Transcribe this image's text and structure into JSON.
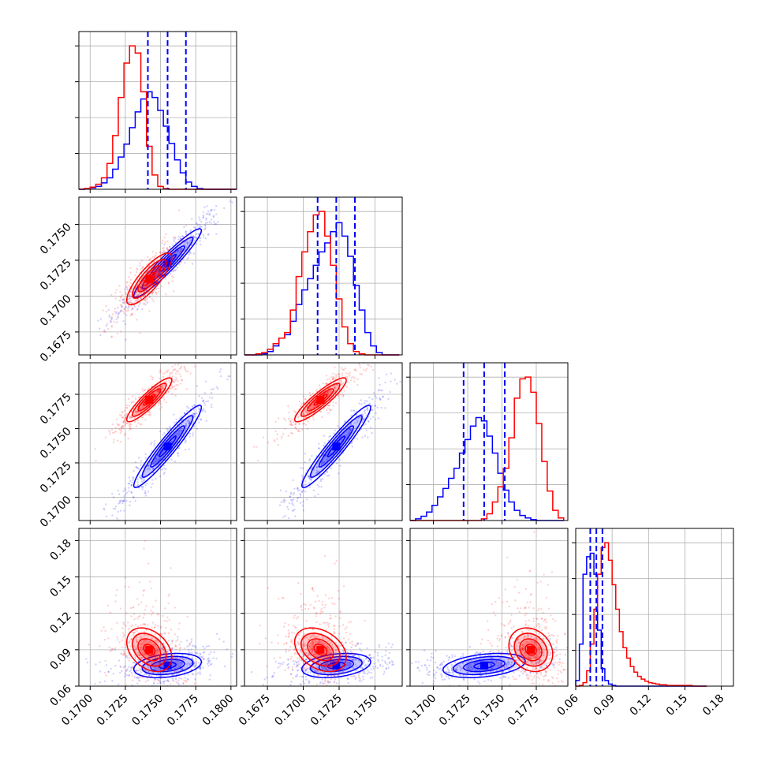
{
  "chart_data": {
    "type": "corner",
    "grid": true,
    "colors": {
      "blue": "#0000ff",
      "red": "#ff0000"
    },
    "parameters": [
      {
        "id": "p0",
        "range": [
          0.1692,
          0.1804
        ],
        "ticks": [
          "0.1700",
          "0.1725",
          "0.1750",
          "0.1775",
          "0.1800"
        ],
        "tick_values": [
          0.17,
          0.1725,
          0.175,
          0.1775,
          0.18
        ]
      },
      {
        "id": "p1",
        "range": [
          0.1659,
          0.1769
        ],
        "ticks": [
          "0.1675",
          "0.1700",
          "0.1725",
          "0.1750"
        ],
        "tick_values": [
          0.1675,
          0.17,
          0.1725,
          0.175
        ]
      },
      {
        "id": "p2",
        "range": [
          0.1683,
          0.1798
        ],
        "ticks": [
          "0.1700",
          "0.1725",
          "0.1750",
          "0.1775"
        ],
        "tick_values": [
          0.17,
          0.1725,
          0.175,
          0.1775
        ]
      },
      {
        "id": "p3",
        "range": [
          0.06,
          0.19
        ],
        "ticks": [
          "0.06",
          "0.09",
          "0.12",
          "0.15",
          "0.18"
        ],
        "tick_values": [
          0.06,
          0.09,
          0.12,
          0.15,
          0.18
        ]
      }
    ],
    "series": [
      {
        "color": "blue",
        "mean": [
          0.1755,
          0.1723,
          0.1737,
          0.077
        ],
        "std": [
          0.0012,
          0.0012,
          0.0015,
          0.005
        ],
        "quantiles_drawn": true,
        "quantiles": [
          [
            0.1741,
            0.1755,
            0.1768
          ],
          [
            0.171,
            0.1723,
            0.1736
          ],
          [
            0.1722,
            0.1737,
            0.1752
          ],
          [
            0.072,
            0.077,
            0.082
          ]
        ]
      },
      {
        "color": "red",
        "mean": [
          0.1742,
          0.1712,
          0.1771,
          0.09
        ],
        "std": [
          0.0008,
          0.0009,
          0.0008,
          0.009
        ],
        "quantiles_drawn": false
      }
    ],
    "histograms": [
      {
        "param": "p0",
        "bins": [
          0.1692,
          0.1696,
          0.17,
          0.1704,
          0.1708,
          0.1712,
          0.1716,
          0.172,
          0.1724,
          0.1728,
          0.1732,
          0.1736,
          0.174,
          0.1744,
          0.1748,
          0.1752,
          0.1756,
          0.176,
          0.1764,
          0.1768,
          0.1772,
          0.1776,
          0.178,
          0.1784,
          0.1788,
          0.1792,
          0.1796,
          0.18
        ],
        "blue": [
          0,
          1,
          2,
          4,
          9,
          16,
          28,
          45,
          63,
          86,
          108,
          126,
          136,
          128,
          110,
          88,
          64,
          41,
          23,
          10,
          4,
          1,
          0,
          0,
          0,
          0,
          0,
          0
        ],
        "red": [
          0,
          1,
          3,
          7,
          16,
          36,
          75,
          128,
          176,
          200,
          190,
          136,
          60,
          20,
          4,
          1,
          0,
          0,
          0,
          0,
          0,
          0,
          0,
          0,
          0,
          0,
          0,
          0
        ]
      },
      {
        "param": "p1",
        "bins": [
          0.1659,
          0.1663,
          0.1667,
          0.1671,
          0.1675,
          0.1679,
          0.1683,
          0.1687,
          0.1691,
          0.1695,
          0.1699,
          0.1703,
          0.1707,
          0.1711,
          0.1715,
          0.1719,
          0.1723,
          0.1727,
          0.1731,
          0.1735,
          0.1739,
          0.1743,
          0.1747,
          0.1751,
          0.1755,
          0.1759,
          0.1763,
          0.1767
        ],
        "blue": [
          0,
          0,
          0,
          1,
          3,
          8,
          15,
          18,
          30,
          45,
          58,
          68,
          80,
          92,
          100,
          110,
          118,
          106,
          88,
          62,
          40,
          20,
          8,
          2,
          0,
          0,
          0
        ],
        "red": [
          0,
          0,
          1,
          2,
          5,
          10,
          15,
          20,
          40,
          70,
          92,
          110,
          125,
          128,
          106,
          80,
          50,
          25,
          10,
          3,
          1,
          0,
          0,
          0,
          0,
          0,
          0
        ]
      },
      {
        "param": "p2",
        "bins": [
          0.1683,
          0.1687,
          0.1691,
          0.1695,
          0.1699,
          0.1703,
          0.1707,
          0.1711,
          0.1715,
          0.1719,
          0.1723,
          0.1727,
          0.1731,
          0.1735,
          0.1739,
          0.1743,
          0.1747,
          0.1751,
          0.1755,
          0.1759,
          0.1763,
          0.1767,
          0.1771,
          0.1775,
          0.1779,
          0.1783,
          0.1787,
          0.1791,
          0.1795
        ],
        "blue": [
          0,
          2,
          5,
          10,
          18,
          28,
          38,
          50,
          62,
          80,
          96,
          112,
          122,
          118,
          100,
          80,
          56,
          36,
          22,
          12,
          6,
          3,
          1,
          0,
          0,
          0,
          0,
          0
        ],
        "red": [
          0,
          0,
          0,
          0,
          0,
          0,
          0,
          0,
          0,
          0,
          0,
          0,
          0,
          2,
          8,
          22,
          40,
          62,
          98,
          145,
          168,
          170,
          152,
          115,
          70,
          35,
          12,
          3
        ]
      },
      {
        "param": "p3",
        "bins": [
          0.06,
          0.063,
          0.066,
          0.069,
          0.072,
          0.075,
          0.078,
          0.081,
          0.084,
          0.087,
          0.09,
          0.093,
          0.096,
          0.099,
          0.102,
          0.105,
          0.108,
          0.111,
          0.114,
          0.117,
          0.12,
          0.123,
          0.126,
          0.129,
          0.132,
          0.135,
          0.138,
          0.141,
          0.144,
          0.147,
          0.15,
          0.153,
          0.156,
          0.159,
          0.162,
          0.165,
          0.168
        ],
        "blue": [
          8,
          60,
          160,
          185,
          190,
          160,
          80,
          25,
          8,
          3,
          1,
          0,
          0,
          0,
          0,
          0,
          0,
          0,
          0,
          0,
          0,
          0,
          0,
          0,
          0,
          0,
          0,
          0,
          0,
          0,
          0,
          0,
          0,
          0,
          0,
          0
        ],
        "red": [
          0,
          1,
          5,
          22,
          60,
          110,
          160,
          198,
          205,
          180,
          145,
          110,
          78,
          55,
          40,
          28,
          20,
          14,
          10,
          7,
          5,
          4,
          3,
          2,
          2,
          1,
          1,
          1,
          1,
          1,
          1,
          1,
          0,
          0,
          0,
          0
        ]
      }
    ],
    "panels_2d": [
      {
        "x": "p0",
        "y": "p1",
        "blue_corr": 0.95,
        "red_corr": 0.82
      },
      {
        "x": "p0",
        "y": "p2",
        "blue_corr": 0.95,
        "red_corr": 0.9
      },
      {
        "x": "p1",
        "y": "p2",
        "blue_corr": 0.95,
        "red_corr": 0.9
      },
      {
        "x": "p0",
        "y": "p3",
        "blue_corr": 0.3,
        "red_corr": -0.35
      },
      {
        "x": "p1",
        "y": "p3",
        "blue_corr": 0.3,
        "red_corr": -0.35
      },
      {
        "x": "p2",
        "y": "p3",
        "blue_corr": 0.35,
        "red_corr": -0.2
      }
    ]
  }
}
